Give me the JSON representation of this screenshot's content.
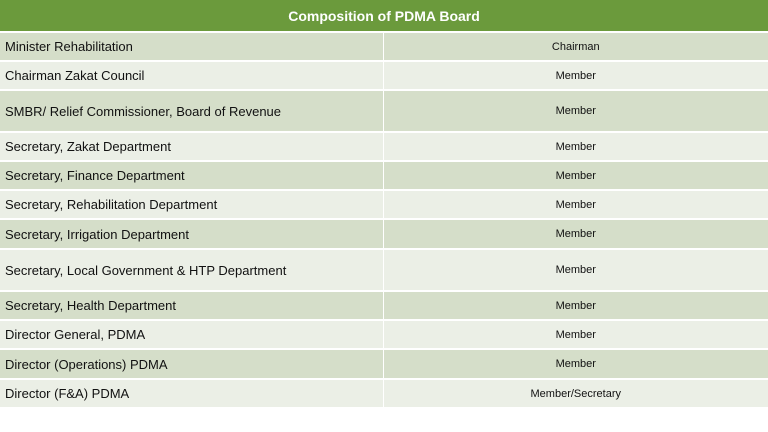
{
  "header": {
    "title": "Composition of PDMA Board"
  },
  "table": {
    "rows": [
      [
        "Minister Rehabilitation",
        "Chairman"
      ],
      [
        "Chairman Zakat Council",
        "Member"
      ],
      [
        "SMBR/ Relief Commissioner, Board of Revenue",
        "Member"
      ],
      [
        "Secretary, Zakat Department",
        "Member"
      ],
      [
        "Secretary, Finance Department",
        "Member"
      ],
      [
        "Secretary, Rehabilitation Department",
        "Member"
      ],
      [
        "Secretary, Irrigation Department",
        "Member"
      ],
      [
        "Secretary, Local Government & HTP Department",
        "Member"
      ],
      [
        "Secretary, Health Department",
        "Member"
      ],
      [
        "Director General, PDMA",
        "Member"
      ],
      [
        "Director (Operations) PDMA",
        "Member"
      ],
      [
        "Director (F&A) PDMA",
        "Member/Secretary"
      ]
    ]
  }
}
